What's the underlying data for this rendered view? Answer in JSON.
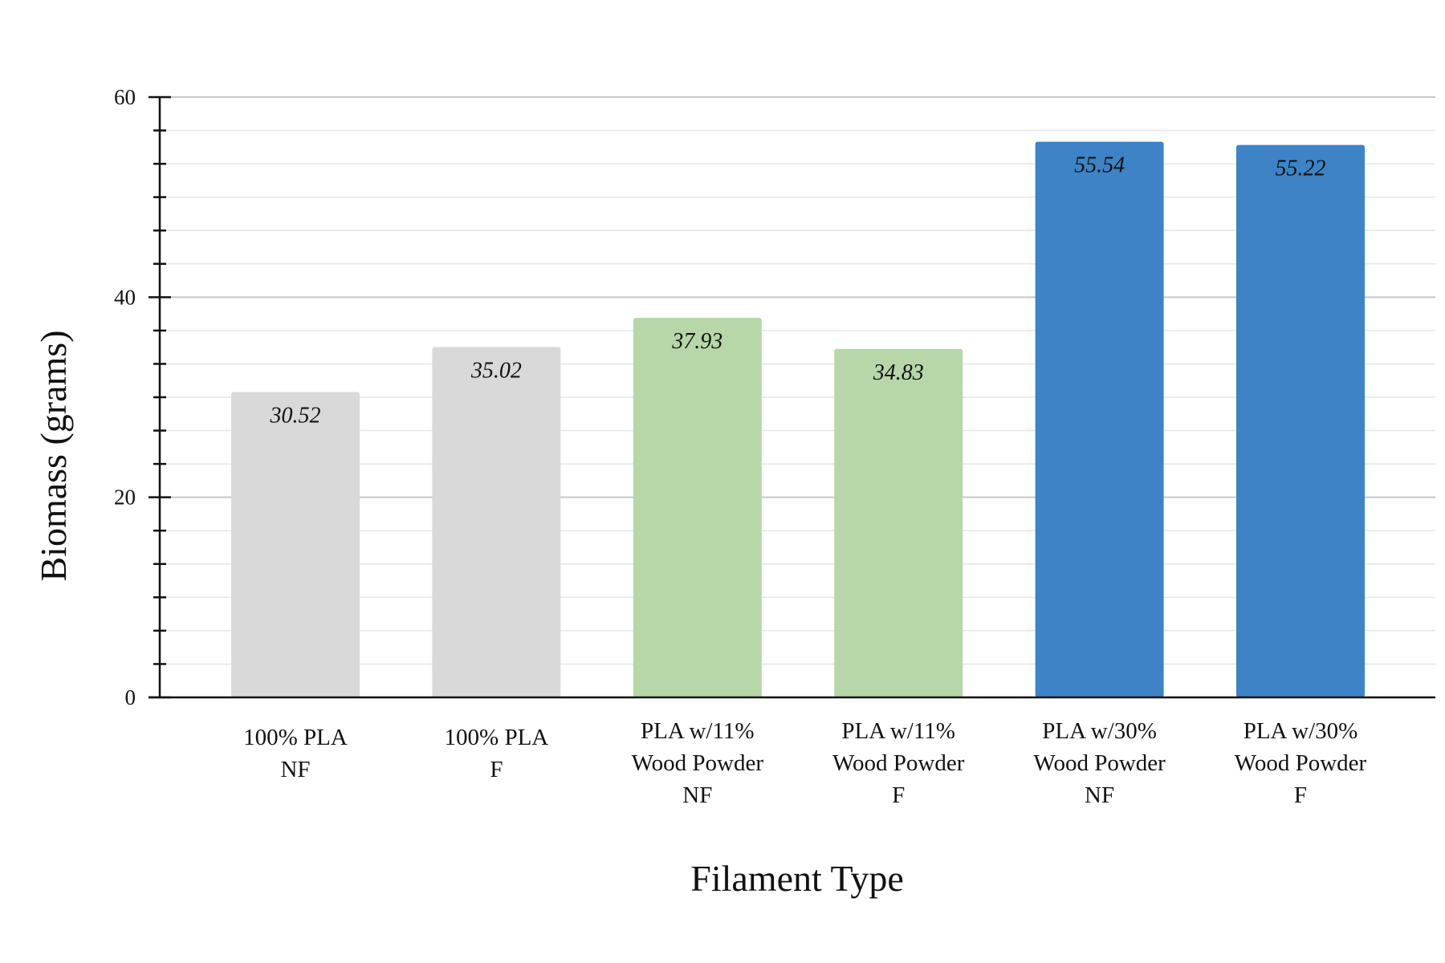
{
  "chart_data": {
    "type": "bar",
    "xlabel": "Filament Type",
    "ylabel": "Biomass (grams)",
    "ylim": [
      0,
      60
    ],
    "yticks": [
      0,
      20,
      40,
      60
    ],
    "minor_step": 3.3333,
    "grid": true,
    "categories": [
      [
        "100% PLA",
        "NF"
      ],
      [
        "100% PLA",
        "F"
      ],
      [
        "PLA w/11%",
        "Wood Powder",
        "NF"
      ],
      [
        "PLA w/11%",
        "Wood Powder",
        "F"
      ],
      [
        "PLA w/30%",
        "Wood Powder",
        "NF"
      ],
      [
        "PLA w/30%",
        "Wood Powder",
        "F"
      ]
    ],
    "values": [
      30.52,
      35.02,
      37.93,
      34.83,
      55.54,
      55.22
    ],
    "value_labels": [
      "30.52",
      "35.02",
      "37.93",
      "34.83",
      "55.54",
      "55.22"
    ],
    "colors": [
      "#d9d9d9",
      "#d9d9d9",
      "#b7d7a8",
      "#b7d7a8",
      "#3d83c6",
      "#3d83c6"
    ]
  }
}
